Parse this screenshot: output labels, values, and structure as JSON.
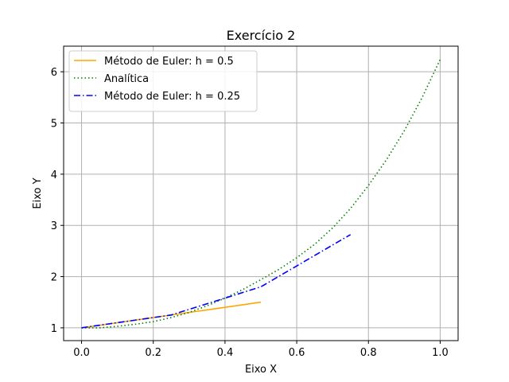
{
  "chart_data": {
    "type": "line",
    "title": "Exercício 2",
    "xlabel": "Eixo X",
    "ylabel": "Eixo Y",
    "xlim": [
      -0.05,
      1.05
    ],
    "ylim": [
      0.75,
      6.5
    ],
    "xticks": [
      0.0,
      0.2,
      0.4,
      0.6,
      0.8,
      1.0
    ],
    "xtick_labels": [
      "0.0",
      "0.2",
      "0.4",
      "0.6",
      "0.8",
      "1.0"
    ],
    "yticks": [
      1,
      2,
      3,
      4,
      5,
      6
    ],
    "ytick_labels": [
      "1",
      "2",
      "3",
      "4",
      "5",
      "6"
    ],
    "grid": true,
    "legend_position": "top-left",
    "series": [
      {
        "name": "Método de Euler: h = 0.5",
        "color": "#ffa500",
        "style": "solid",
        "x": [
          0.0,
          0.5
        ],
        "y": [
          1.0,
          1.5
        ]
      },
      {
        "name": "Analítica",
        "color": "#008000",
        "style": "dotted",
        "x": [
          0.0,
          0.05,
          0.1,
          0.15,
          0.2,
          0.25,
          0.3,
          0.35,
          0.4,
          0.45,
          0.5,
          0.55,
          0.6,
          0.65,
          0.7,
          0.75,
          0.8,
          0.85,
          0.9,
          0.95,
          1.0
        ],
        "y": [
          1.0,
          1.0,
          1.03,
          1.07,
          1.12,
          1.2,
          1.3,
          1.43,
          1.58,
          1.75,
          1.94,
          2.14,
          2.37,
          2.63,
          2.95,
          3.33,
          3.78,
          4.28,
          4.85,
          5.5,
          6.24
        ]
      },
      {
        "name": "Método de Euler: h = 0.25",
        "color": "#0000ff",
        "style": "dashdot",
        "x": [
          0.0,
          0.25,
          0.5,
          0.75
        ],
        "y": [
          1.0,
          1.25,
          1.8,
          2.82
        ]
      }
    ]
  }
}
